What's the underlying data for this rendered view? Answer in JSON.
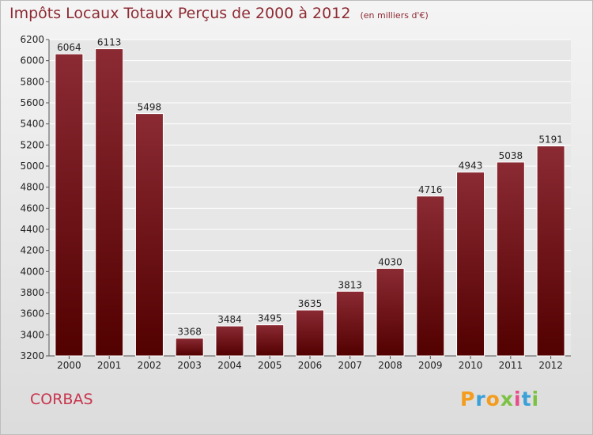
{
  "title": "Impôts Locaux Totaux Perçus de 2000 à 2012",
  "subtitle": "(en milliers d'€)",
  "city": "CORBAS",
  "logo": [
    "P",
    "r",
    "o",
    "x",
    "i",
    "t",
    "i"
  ],
  "colors": {
    "bar_top": "#8b2a33",
    "bar_bottom": "#520000",
    "title": "#8e2a33",
    "city": "#c8344d"
  },
  "chart_data": {
    "type": "bar",
    "categories": [
      "2000",
      "2001",
      "2002",
      "2003",
      "2004",
      "2005",
      "2006",
      "2007",
      "2008",
      "2009",
      "2010",
      "2011",
      "2012"
    ],
    "values": [
      6064,
      6113,
      5498,
      3368,
      3484,
      3495,
      3635,
      3813,
      4030,
      4716,
      4943,
      5038,
      5191
    ],
    "ylim": [
      3200,
      6200
    ],
    "yticks": [
      3200,
      3400,
      3600,
      3800,
      4000,
      4200,
      4400,
      4600,
      4800,
      5000,
      5200,
      5400,
      5600,
      5800,
      6000,
      6200
    ],
    "grid": true,
    "data_labels": true
  }
}
